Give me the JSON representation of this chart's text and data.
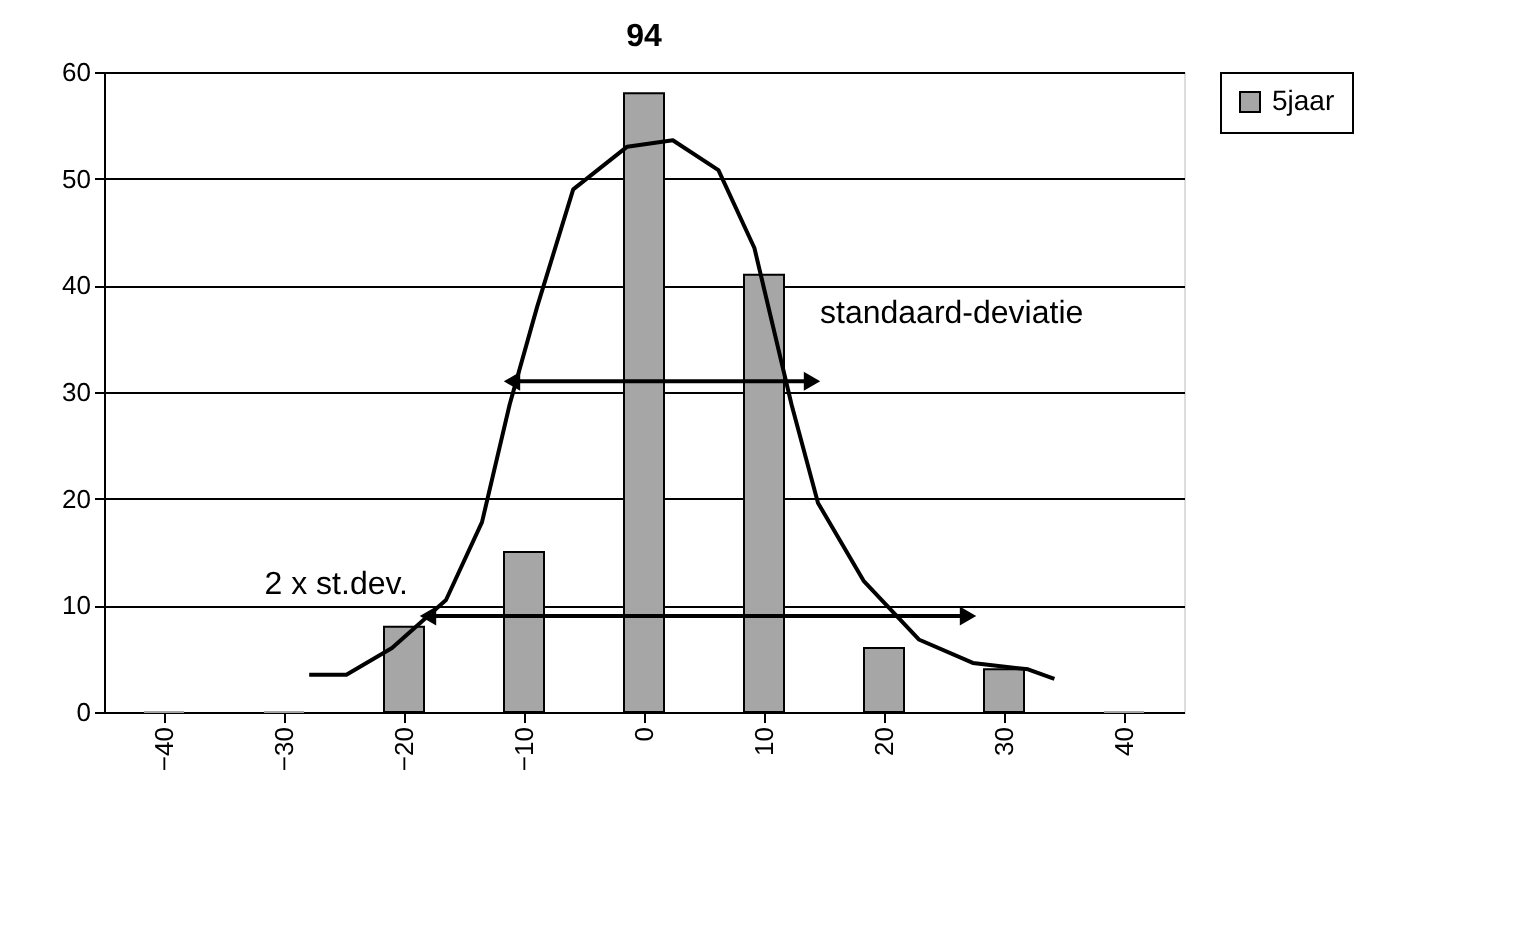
{
  "chart_data": {
    "type": "bar",
    "title": "94",
    "x": [
      -40,
      -30,
      -20,
      -10,
      0,
      10,
      20,
      30,
      40
    ],
    "xlim": [
      -45,
      45
    ],
    "xticks": [
      -40,
      -30,
      -20,
      -10,
      0,
      10,
      20,
      30,
      40
    ],
    "ylim": [
      0,
      60
    ],
    "yticks": [
      0,
      10,
      20,
      30,
      40,
      50,
      60
    ],
    "grid": "y",
    "legend": "right",
    "series": [
      {
        "name": "5jaar",
        "color": "#a6a6a6",
        "values": [
          0,
          0,
          8,
          15,
          58,
          41,
          6,
          4,
          0
        ]
      },
      {
        "type": "line",
        "color": "#000000",
        "x": [
          -27.9,
          -24.8,
          -21,
          -16.5,
          -13.5,
          -11.2,
          -8.9,
          -5.9,
          -1.4,
          2.4,
          6.2,
          9.2,
          12.3,
          14.5,
          18.3,
          22.9,
          27.4,
          32,
          34.2
        ],
        "values": [
          3.5,
          3.5,
          6,
          10.5,
          17.8,
          28.8,
          38,
          49,
          53,
          53.6,
          50.8,
          43.5,
          28.8,
          19.6,
          12.3,
          6.8,
          4.6,
          4,
          3.1
        ]
      },
      {
        "type": "line",
        "color": "#000000",
        "marker": "triangle",
        "x": [
          -11,
          14
        ],
        "values": [
          31,
          31
        ]
      },
      {
        "type": "line",
        "color": "#000000",
        "marker": "triangle",
        "x": [
          -18,
          27
        ],
        "values": [
          9,
          9
        ]
      }
    ],
    "annotations": [
      {
        "text": "standaard-deviatie",
        "x": 14,
        "y": 31
      },
      {
        "text": "2 x st.dev.",
        "x": -18,
        "y": 9
      }
    ]
  }
}
